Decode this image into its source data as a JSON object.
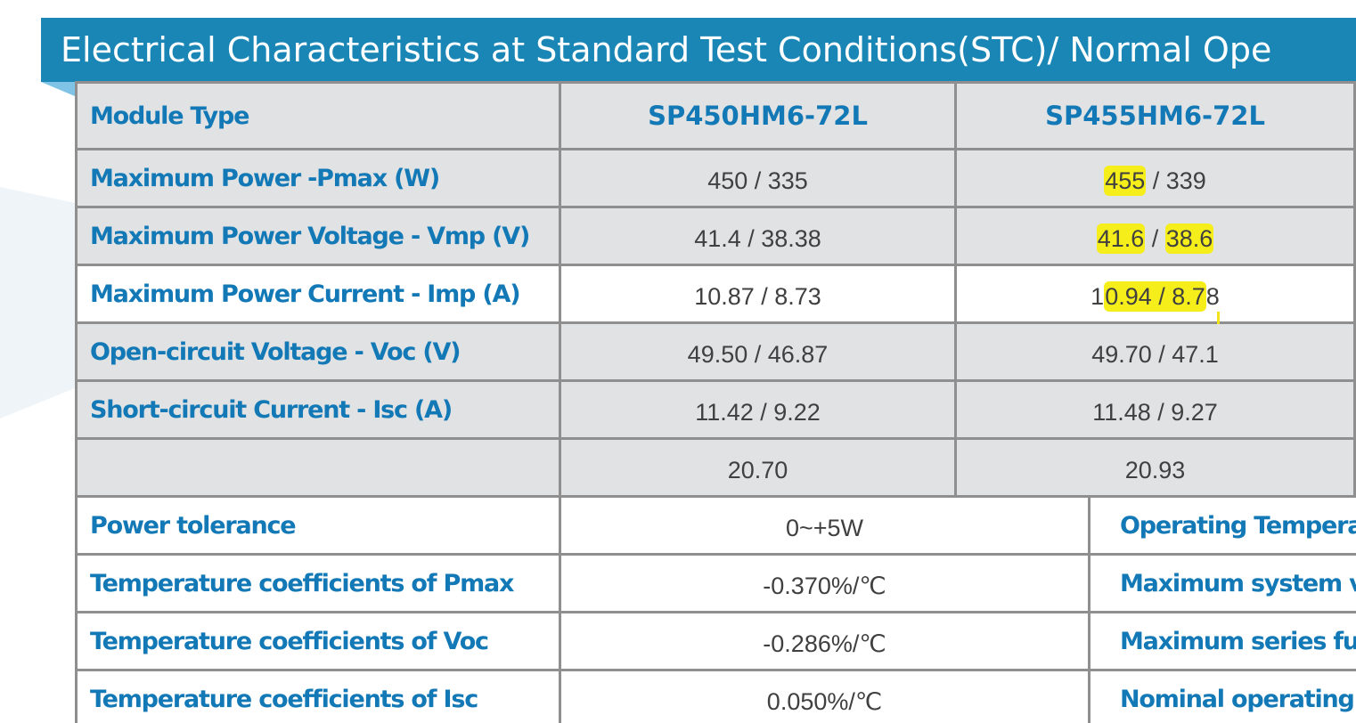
{
  "header": {
    "title": "Electrical Characteristics at Standard Test Conditions(STC)/ Normal Ope"
  },
  "table": {
    "header_label": "Module Type",
    "models": [
      "SP450HM6-72L",
      "SP455HM6-72L"
    ],
    "rows": [
      {
        "label": "Maximum Power -Pmax (W)",
        "values": [
          "450 / 335",
          "455 / 339"
        ]
      },
      {
        "label": "Maximum Power Voltage - Vmp (V)",
        "values": [
          "41.4 / 38.38",
          "41.6 / 38.6"
        ]
      },
      {
        "label": "Maximum Power Current - Imp (A)",
        "values": [
          "10.87 / 8.73",
          "10.94 / 8.78"
        ]
      },
      {
        "label": "Open-circuit Voltage - Voc (V)",
        "values": [
          "49.50 / 46.87",
          "49.70 / 47.1"
        ]
      },
      {
        "label": "Short-circuit Current - Isc (A)",
        "values": [
          "11.42 / 9.22",
          "11.48 / 9.27"
        ]
      },
      {
        "label": "",
        "values": [
          "20.70",
          "20.93"
        ]
      }
    ],
    "highlights": {
      "pmax_455": "455",
      "pmax_rest": " / 339",
      "vmp_a": "41.6",
      "vmp_sep": " / ",
      "vmp_b": "38.6",
      "imp_prefix": "1",
      "imp_hl": "0.94 / 8.7",
      "imp_suffix": "8"
    }
  },
  "lower_table": {
    "rows": [
      {
        "label": "Power tolerance",
        "value": "0~+5W",
        "right_label": "Operating Tempera"
      },
      {
        "label": "Temperature coefficients of Pmax",
        "value": "-0.370%/℃",
        "right_label": "Maximum system v"
      },
      {
        "label": "Temperature coefficients of Voc",
        "value": "-0.286%/℃",
        "right_label": "Maximum series fu"
      },
      {
        "label": "Temperature coefficients of Isc",
        "value": "0.050%/℃",
        "right_label": "Nominal operating"
      }
    ]
  },
  "colors": {
    "title_bar": "#1a86b5",
    "label_text": "#1379b6",
    "value_text": "#404040",
    "grey_row": "#e0e2e3",
    "border": "#8f8f8f",
    "highlighter": "#f6ee1a"
  }
}
